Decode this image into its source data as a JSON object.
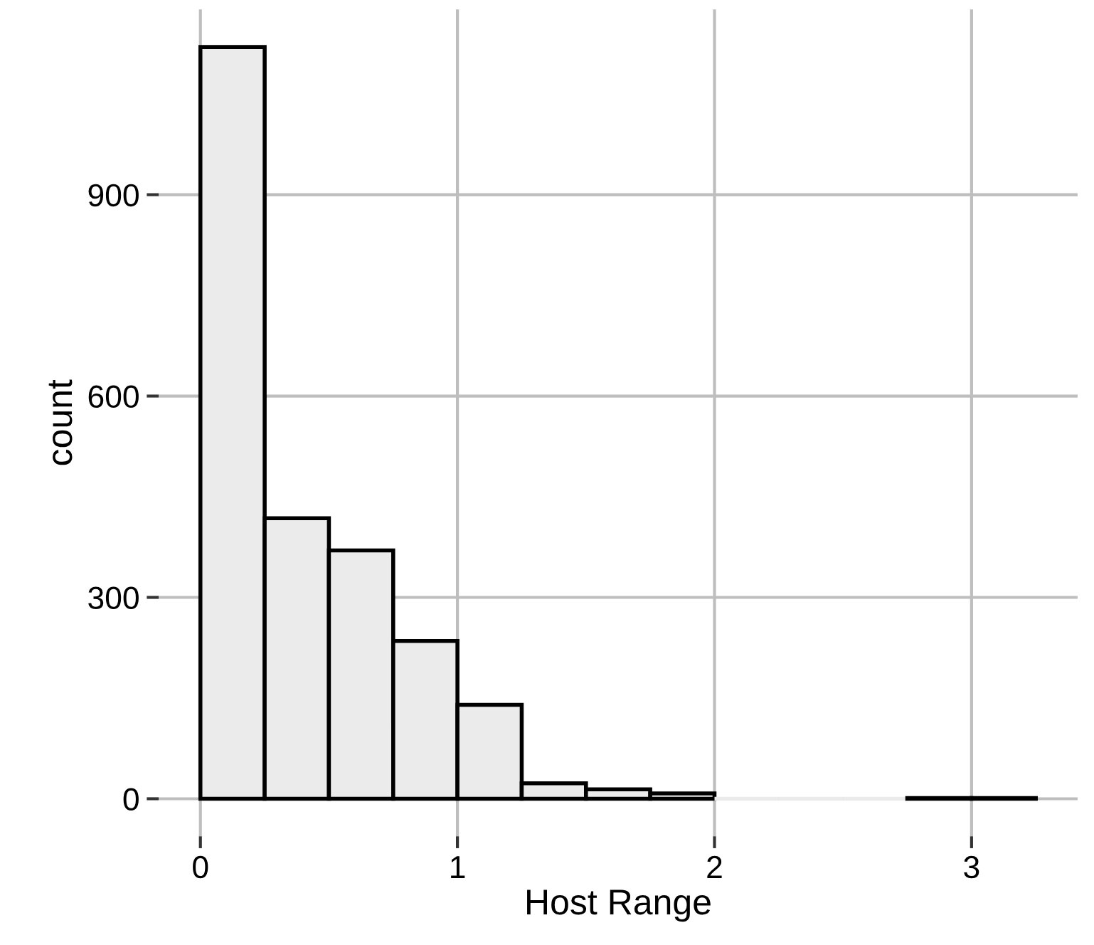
{
  "chart_data": {
    "type": "histogram",
    "xlabel": "Host Range",
    "ylabel": "count",
    "bins": [
      0,
      0.25,
      0.5,
      0.75,
      1,
      1.25,
      1.5,
      1.75,
      2,
      2.25,
      2.5,
      2.75,
      3,
      3.25
    ],
    "values": [
      1120,
      418,
      370,
      235,
      140,
      23,
      14,
      8,
      0,
      0,
      0,
      1,
      1
    ],
    "color": "#ebebeb",
    "xlim": [
      -0.1625,
      3.4125
    ],
    "ylim": [
      -56,
      1176
    ],
    "xticks": [
      0,
      1,
      2,
      3
    ],
    "yticks": [
      0,
      300,
      600,
      900
    ],
    "grid": true
  }
}
